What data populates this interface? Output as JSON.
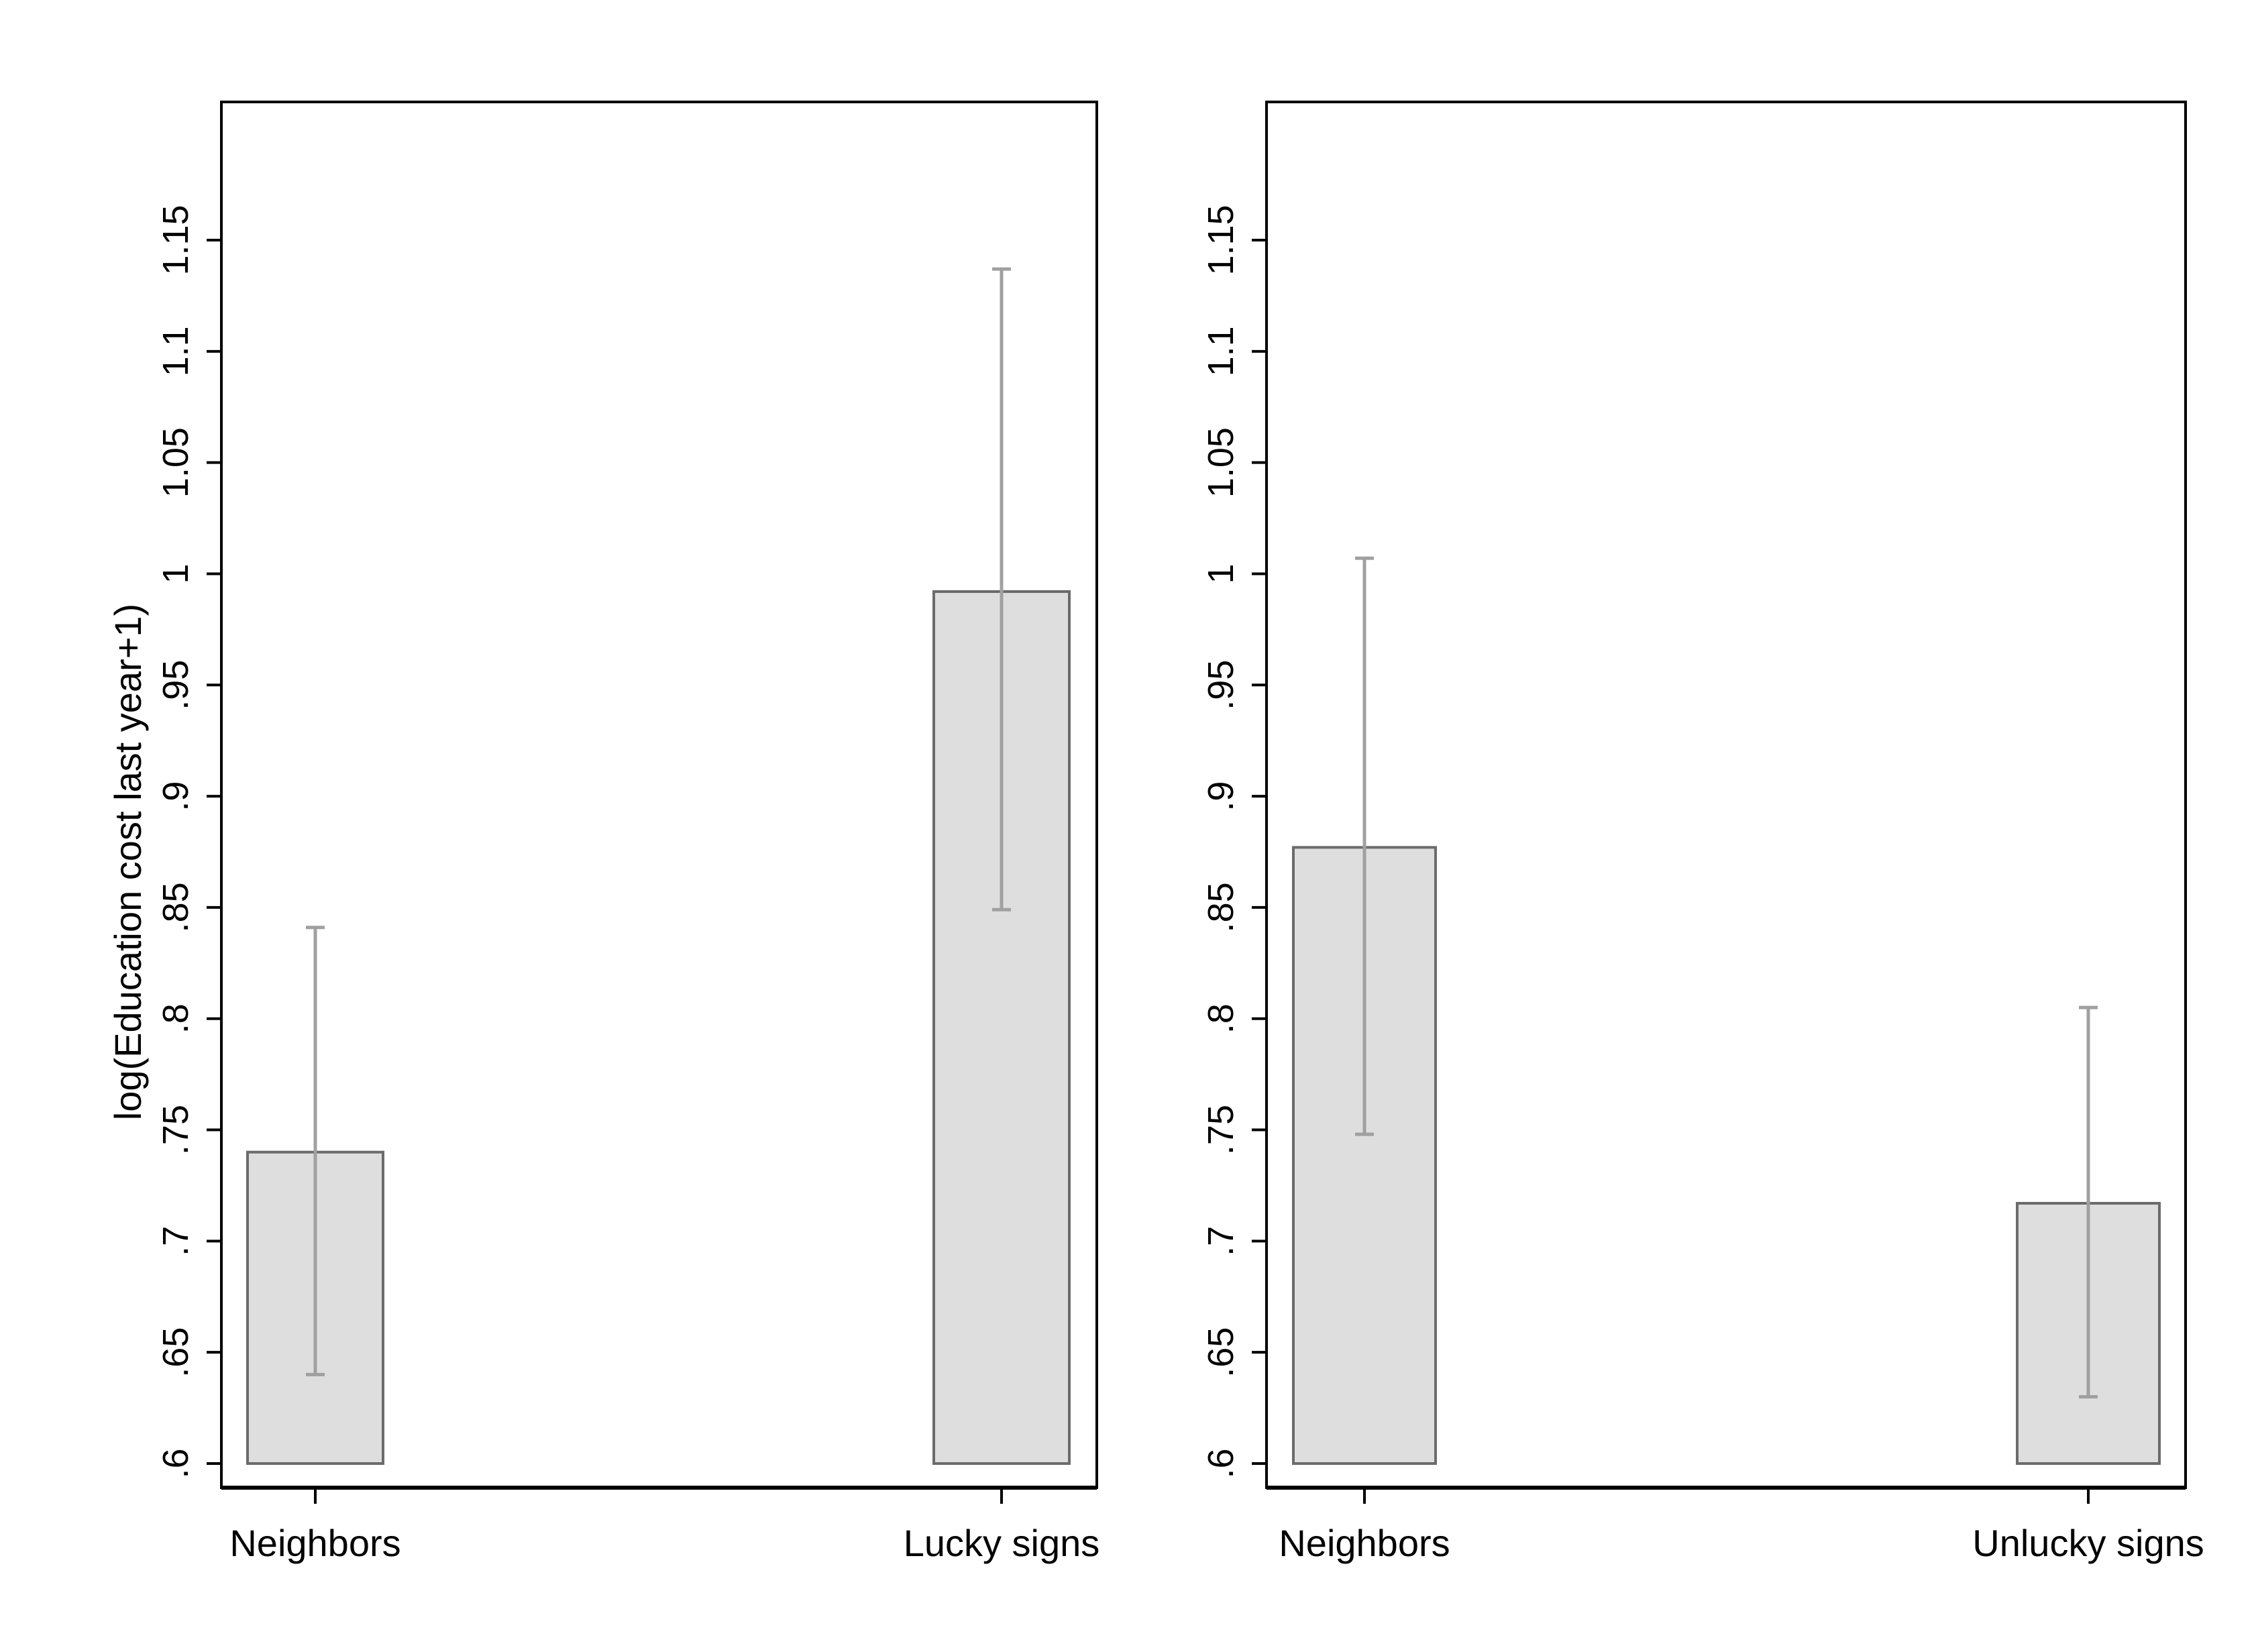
{
  "ylabel": "log(Education cost last year+1)",
  "colors": {
    "bar_fill": "#dedede",
    "bar_stroke": "#6b6b6b",
    "error_bar": "#a0a0a0",
    "frame": "#000000"
  },
  "chart_data": [
    {
      "type": "bar",
      "categories": [
        "Neighbors",
        "Lucky signs"
      ],
      "values": [
        0.74,
        0.992
      ],
      "error_low": [
        0.64,
        0.849
      ],
      "error_high": [
        0.841,
        1.137
      ],
      "ylim": [
        0.6,
        1.2
      ],
      "yticks": [
        ".6",
        ".65",
        ".7",
        ".75",
        ".8",
        ".85",
        ".9",
        ".95",
        "1",
        "1.05",
        "1.1",
        "1.15"
      ],
      "ylabel": "log(Education cost last year+1)",
      "grid": false
    },
    {
      "type": "bar",
      "categories": [
        "Neighbors",
        "Unlucky signs"
      ],
      "values": [
        0.877,
        0.717
      ],
      "error_low": [
        0.748,
        0.63
      ],
      "error_high": [
        1.007,
        0.805
      ],
      "ylim": [
        0.6,
        1.2
      ],
      "yticks": [
        ".6",
        ".65",
        ".7",
        ".75",
        ".8",
        ".85",
        ".9",
        ".95",
        "1",
        "1.05",
        "1.1",
        "1.15"
      ],
      "ylabel": "",
      "grid": false
    }
  ]
}
